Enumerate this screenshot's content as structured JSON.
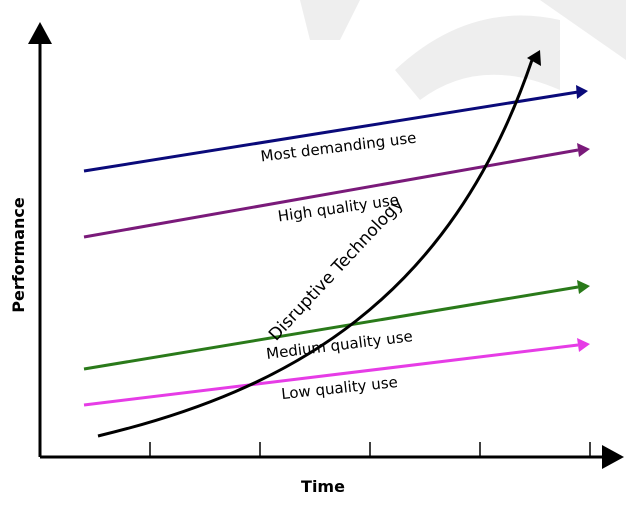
{
  "axes": {
    "x_label": "Time",
    "y_label": "Performance"
  },
  "lines": [
    {
      "label": "Most demanding use",
      "color": "#0a0a7a"
    },
    {
      "label": "High quality use",
      "color": "#7a1a7a"
    },
    {
      "label": "Medium quality use",
      "color": "#2a7a1a"
    },
    {
      "label": "Low quality use",
      "color": "#e63ce6"
    }
  ],
  "curve": {
    "label": "Disruptive Technology",
    "color": "#000000"
  },
  "background": {
    "watermark_color": "#eeeeee"
  }
}
